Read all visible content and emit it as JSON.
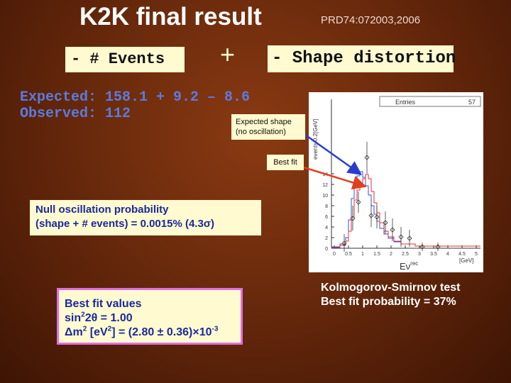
{
  "slide": {
    "title": "K2K final result",
    "reference": "PRD74:072003,2006",
    "events_label": "- # Events",
    "plus": "+",
    "shape_label": "- Shape distortion",
    "expected_line": "Expected:  158.1 + 9.2 – 8.6",
    "observed_line": "Observed:  112",
    "expected_shape_line1": "Expected shape",
    "expected_shape_line2": "(no oscillation)",
    "best_fit_label": "Best fit",
    "null_line1": "Null oscillation probability",
    "null_line2": "(shape + # events) = 0.0015% (4.3σ)",
    "bf_values_title": "Best fit values",
    "bf_sin_a": "sin",
    "bf_sin_sup": "2",
    "bf_sin_b": "2θ = 1.00",
    "bf_dm_a": "Δm",
    "bf_dm_sup1": "2",
    "bf_dm_b": " [eV",
    "bf_dm_sup2": "2",
    "bf_dm_c": "] = (2.80 ± 0.36)×10",
    "bf_dm_sup3": "-3",
    "ks_line1": "Kolmogorov-Smirnov test",
    "ks_line2": "Best fit  probability = 37%"
  },
  "plot": {
    "stat_label": "Entries",
    "stat_value": "57",
    "x_axis_label": "Eν",
    "x_axis_label_sup": "rec",
    "x_unit": "[GeV]",
    "y_axis_label": "events/0.2[GeV]",
    "y_ticks": [
      "0",
      "2",
      "4",
      "6",
      "8",
      "10",
      "12",
      "14"
    ],
    "x_ticks": [
      "0",
      "0.5",
      "1",
      "1.5",
      "2",
      "2.5",
      "3",
      "3.5",
      "4",
      "4.5",
      "5"
    ],
    "colors": {
      "expected": "#3050e0",
      "best_fit": "#e03030",
      "data": "#333333"
    }
  }
}
